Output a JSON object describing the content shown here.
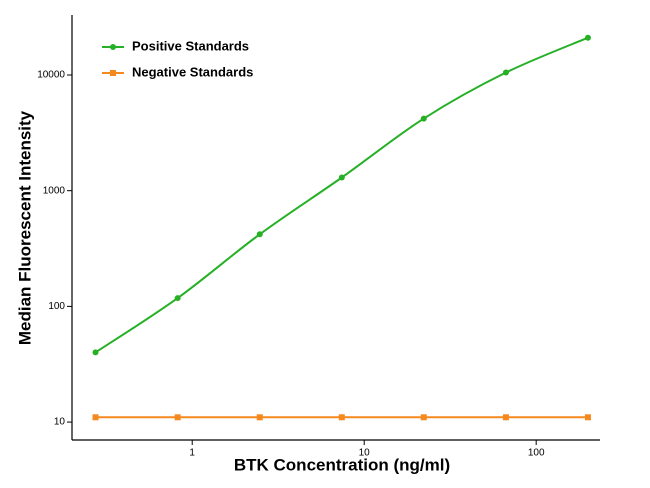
{
  "chart_data": {
    "type": "line",
    "x_label": "BTK Concentration (ng/ml)",
    "y_label": "Median Fluorescent Intensity",
    "x": [
      0.274,
      0.823,
      2.47,
      7.41,
      22.2,
      66.7,
      200
    ],
    "series": [
      {
        "name": "Positive Standards",
        "color": "#26b026",
        "marker": "circle",
        "values": [
          40,
          118,
          420,
          1300,
          4200,
          10500,
          21000
        ]
      },
      {
        "name": "Negative Standards",
        "color": "#f5891e",
        "marker": "square",
        "values": [
          11,
          11,
          11,
          11,
          11,
          11,
          11
        ]
      }
    ],
    "xscale": "log",
    "yscale": "log",
    "xlim": [
      0.2,
      235
    ],
    "ylim": [
      7,
      33000
    ],
    "xticks": [
      1,
      10,
      100
    ],
    "yticks": [
      10,
      100,
      1000,
      10000
    ],
    "legend": "upper left"
  }
}
